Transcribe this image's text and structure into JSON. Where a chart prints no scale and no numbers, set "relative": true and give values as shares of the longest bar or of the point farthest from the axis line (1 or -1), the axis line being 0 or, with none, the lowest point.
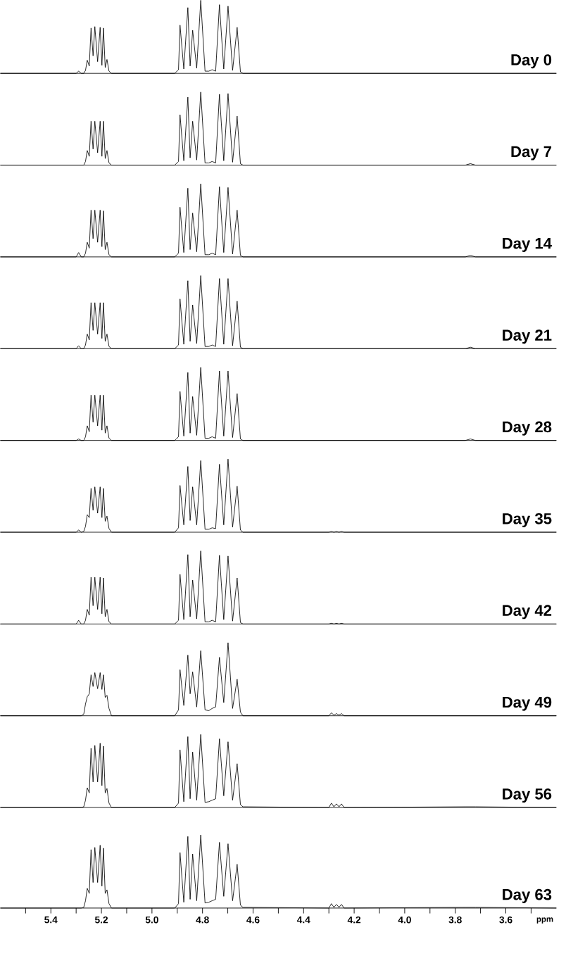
{
  "chart_data": [
    {
      "type": "line",
      "relative": true,
      "xlim": [
        5.6,
        3.4
      ],
      "tick_labels": false,
      "x": [
        5.6,
        5.3,
        5.29,
        5.28,
        5.27,
        5.263,
        5.256,
        5.248,
        5.241,
        5.233,
        5.226,
        5.215,
        5.205,
        5.198,
        5.192,
        5.185,
        5.178,
        5.17,
        5.16,
        4.91,
        4.895,
        4.889,
        4.874,
        4.858,
        4.849,
        4.839,
        4.823,
        4.807,
        4.79,
        4.775,
        4.762,
        4.748,
        4.733,
        4.716,
        4.699,
        4.681,
        4.663,
        4.65,
        4.64,
        4.3,
        4.29,
        4.28,
        4.27,
        4.26,
        4.25,
        4.24,
        3.76,
        3.74,
        3.72,
        3.4
      ],
      "series": [
        {
          "name": "Day 0",
          "color": "#000000",
          "values": [
            0,
            0,
            0.03,
            0,
            0,
            0.04,
            0.18,
            0.1,
            0.62,
            0.24,
            0.64,
            0.16,
            0.63,
            0.11,
            0.62,
            0.08,
            0.19,
            0.03,
            0,
            0,
            0.05,
            0.66,
            0.06,
            0.9,
            0.1,
            0.59,
            0.07,
            1,
            0.03,
            0.03,
            0.05,
            0.03,
            0.94,
            0.06,
            0.92,
            0.04,
            0.63,
            0.02,
            0,
            0,
            0,
            0,
            0,
            0,
            0,
            0,
            0,
            0,
            0,
            0
          ]
        }
      ]
    },
    {
      "type": "line",
      "relative": true,
      "xlim": [
        5.6,
        3.4
      ],
      "tick_labels": false,
      "x": [
        5.6,
        5.3,
        5.29,
        5.28,
        5.27,
        5.263,
        5.256,
        5.248,
        5.241,
        5.233,
        5.226,
        5.215,
        5.205,
        5.198,
        5.192,
        5.185,
        5.178,
        5.17,
        5.16,
        4.91,
        4.895,
        4.889,
        4.874,
        4.858,
        4.849,
        4.839,
        4.823,
        4.807,
        4.79,
        4.775,
        4.762,
        4.748,
        4.733,
        4.716,
        4.699,
        4.681,
        4.663,
        4.65,
        4.64,
        4.3,
        4.29,
        4.28,
        4.27,
        4.26,
        4.25,
        4.24,
        3.76,
        3.74,
        3.72,
        3.4
      ],
      "series": [
        {
          "name": "Day 7",
          "color": "#000000",
          "values": [
            0,
            0,
            0,
            0,
            0,
            0.05,
            0.2,
            0.12,
            0.6,
            0.22,
            0.6,
            0.17,
            0.6,
            0.12,
            0.6,
            0.09,
            0.2,
            0.03,
            0,
            0,
            0.05,
            0.69,
            0.06,
            0.93,
            0.1,
            0.6,
            0.07,
            1,
            0.03,
            0.03,
            0.05,
            0.03,
            0.97,
            0.06,
            0.98,
            0.04,
            0.67,
            0.02,
            0,
            0,
            0,
            0,
            0,
            0,
            0,
            0,
            0,
            0.02,
            0,
            0
          ]
        }
      ]
    },
    {
      "type": "line",
      "relative": true,
      "xlim": [
        5.6,
        3.4
      ],
      "tick_labels": false,
      "x": [
        5.6,
        5.3,
        5.29,
        5.28,
        5.27,
        5.263,
        5.256,
        5.248,
        5.241,
        5.233,
        5.226,
        5.215,
        5.205,
        5.198,
        5.192,
        5.185,
        5.178,
        5.17,
        5.16,
        4.91,
        4.895,
        4.889,
        4.874,
        4.858,
        4.849,
        4.839,
        4.823,
        4.807,
        4.79,
        4.775,
        4.762,
        4.748,
        4.733,
        4.716,
        4.699,
        4.681,
        4.663,
        4.65,
        4.64,
        4.3,
        4.29,
        4.28,
        4.27,
        4.26,
        4.25,
        4.24,
        3.76,
        3.74,
        3.72,
        3.4
      ],
      "series": [
        {
          "name": "Day 14",
          "color": "#000000",
          "values": [
            0,
            0,
            0.06,
            0,
            0,
            0.05,
            0.2,
            0.12,
            0.64,
            0.25,
            0.64,
            0.2,
            0.64,
            0.14,
            0.63,
            0.1,
            0.2,
            0.03,
            0,
            0,
            0.05,
            0.68,
            0.06,
            0.94,
            0.1,
            0.6,
            0.07,
            1,
            0.03,
            0.03,
            0.05,
            0.03,
            0.96,
            0.06,
            0.95,
            0.04,
            0.64,
            0.02,
            0,
            0,
            0,
            0,
            0,
            0,
            0,
            0,
            0,
            0.02,
            0,
            0
          ]
        }
      ]
    },
    {
      "type": "line",
      "relative": true,
      "xlim": [
        5.6,
        3.4
      ],
      "tick_labels": false,
      "x": [
        5.6,
        5.3,
        5.29,
        5.28,
        5.27,
        5.263,
        5.256,
        5.248,
        5.241,
        5.233,
        5.226,
        5.215,
        5.205,
        5.198,
        5.192,
        5.185,
        5.178,
        5.17,
        5.16,
        4.91,
        4.895,
        4.889,
        4.874,
        4.858,
        4.849,
        4.839,
        4.823,
        4.807,
        4.79,
        4.775,
        4.762,
        4.748,
        4.733,
        4.716,
        4.699,
        4.681,
        4.663,
        4.65,
        4.64,
        4.3,
        4.29,
        4.28,
        4.27,
        4.26,
        4.25,
        4.24,
        3.76,
        3.74,
        3.72,
        3.4
      ],
      "series": [
        {
          "name": "Day 21",
          "color": "#000000",
          "values": [
            0,
            0,
            0.04,
            0,
            0,
            0.05,
            0.2,
            0.12,
            0.63,
            0.25,
            0.63,
            0.2,
            0.63,
            0.14,
            0.63,
            0.1,
            0.2,
            0.03,
            0,
            0,
            0.05,
            0.68,
            0.06,
            0.93,
            0.1,
            0.6,
            0.07,
            1,
            0.03,
            0.03,
            0.05,
            0.03,
            0.96,
            0.06,
            0.96,
            0.04,
            0.65,
            0.02,
            0,
            0,
            0,
            0,
            0,
            0,
            0,
            0,
            0,
            0.02,
            0,
            0
          ]
        }
      ]
    },
    {
      "type": "line",
      "relative": true,
      "xlim": [
        5.6,
        3.4
      ],
      "tick_labels": false,
      "x": [
        5.6,
        5.3,
        5.29,
        5.28,
        5.27,
        5.263,
        5.256,
        5.248,
        5.241,
        5.233,
        5.226,
        5.215,
        5.205,
        5.198,
        5.192,
        5.185,
        5.178,
        5.17,
        5.16,
        4.91,
        4.895,
        4.889,
        4.874,
        4.858,
        4.849,
        4.839,
        4.823,
        4.807,
        4.79,
        4.775,
        4.762,
        4.748,
        4.733,
        4.716,
        4.699,
        4.681,
        4.663,
        4.65,
        4.64,
        4.3,
        4.29,
        4.28,
        4.27,
        4.26,
        4.25,
        4.24,
        3.76,
        3.74,
        3.72,
        3.4
      ],
      "series": [
        {
          "name": "Day 28",
          "color": "#000000",
          "values": [
            0,
            0,
            0.02,
            0,
            0,
            0.05,
            0.2,
            0.12,
            0.62,
            0.25,
            0.62,
            0.2,
            0.62,
            0.14,
            0.62,
            0.1,
            0.2,
            0.03,
            0,
            0,
            0.05,
            0.67,
            0.06,
            0.93,
            0.1,
            0.6,
            0.07,
            1,
            0.03,
            0.03,
            0.05,
            0.03,
            0.95,
            0.06,
            0.95,
            0.04,
            0.64,
            0.02,
            0,
            0,
            0,
            0,
            0,
            0,
            0,
            0,
            0,
            0.02,
            0,
            0
          ]
        }
      ]
    },
    {
      "type": "line",
      "relative": true,
      "xlim": [
        5.6,
        3.4
      ],
      "tick_labels": false,
      "x": [
        5.6,
        5.3,
        5.29,
        5.28,
        5.27,
        5.263,
        5.256,
        5.248,
        5.241,
        5.233,
        5.226,
        5.215,
        5.205,
        5.198,
        5.192,
        5.185,
        5.178,
        5.17,
        5.16,
        4.91,
        4.895,
        4.889,
        4.874,
        4.858,
        4.849,
        4.839,
        4.823,
        4.807,
        4.79,
        4.775,
        4.762,
        4.748,
        4.733,
        4.716,
        4.699,
        4.681,
        4.663,
        4.65,
        4.64,
        4.3,
        4.29,
        4.28,
        4.27,
        4.26,
        4.25,
        4.24,
        3.76,
        3.74,
        3.72,
        3.4
      ],
      "series": [
        {
          "name": "Day 35",
          "color": "#000000",
          "values": [
            0,
            0,
            0.03,
            0,
            0.01,
            0.08,
            0.24,
            0.2,
            0.6,
            0.3,
            0.62,
            0.26,
            0.62,
            0.2,
            0.6,
            0.15,
            0.22,
            0.05,
            0,
            0,
            0.06,
            0.64,
            0.1,
            0.9,
            0.16,
            0.62,
            0.1,
            0.98,
            0.04,
            0.04,
            0.06,
            0.05,
            0.93,
            0.1,
            1,
            0.07,
            0.63,
            0.03,
            0,
            0,
            0.01,
            0,
            0.01,
            0,
            0.01,
            0,
            0,
            0,
            0,
            0
          ]
        }
      ]
    },
    {
      "type": "line",
      "relative": true,
      "xlim": [
        5.6,
        3.4
      ],
      "tick_labels": false,
      "x": [
        5.6,
        5.3,
        5.29,
        5.28,
        5.27,
        5.263,
        5.256,
        5.248,
        5.241,
        5.233,
        5.226,
        5.215,
        5.205,
        5.198,
        5.192,
        5.185,
        5.178,
        5.17,
        5.16,
        4.91,
        4.895,
        4.889,
        4.874,
        4.858,
        4.849,
        4.839,
        4.823,
        4.807,
        4.79,
        4.775,
        4.762,
        4.748,
        4.733,
        4.716,
        4.699,
        4.681,
        4.663,
        4.65,
        4.64,
        4.3,
        4.29,
        4.28,
        4.27,
        4.26,
        4.25,
        4.24,
        3.76,
        3.74,
        3.72,
        3.4
      ],
      "series": [
        {
          "name": "Day 42",
          "color": "#000000",
          "values": [
            0,
            0,
            0.05,
            0,
            0,
            0.05,
            0.2,
            0.12,
            0.64,
            0.25,
            0.64,
            0.2,
            0.64,
            0.14,
            0.63,
            0.1,
            0.2,
            0.03,
            0,
            0,
            0.05,
            0.68,
            0.06,
            0.95,
            0.1,
            0.6,
            0.07,
            1,
            0.03,
            0.03,
            0.05,
            0.03,
            0.94,
            0.06,
            0.93,
            0.04,
            0.63,
            0.02,
            0,
            0,
            0.01,
            0,
            0.01,
            0,
            0.01,
            0,
            0,
            0,
            0,
            0
          ]
        }
      ]
    },
    {
      "type": "line",
      "relative": true,
      "xlim": [
        5.6,
        3.4
      ],
      "tick_labels": false,
      "x": [
        5.6,
        5.3,
        5.29,
        5.28,
        5.27,
        5.263,
        5.256,
        5.248,
        5.241,
        5.233,
        5.226,
        5.215,
        5.205,
        5.198,
        5.192,
        5.185,
        5.178,
        5.17,
        5.16,
        4.91,
        4.895,
        4.889,
        4.874,
        4.858,
        4.849,
        4.839,
        4.823,
        4.807,
        4.79,
        4.775,
        4.762,
        4.748,
        4.733,
        4.716,
        4.699,
        4.681,
        4.663,
        4.65,
        4.64,
        4.3,
        4.29,
        4.28,
        4.27,
        4.26,
        4.25,
        4.24,
        3.76,
        3.74,
        3.72,
        3.4
      ],
      "series": [
        {
          "name": "Day 49",
          "color": "#000000",
          "values": [
            0,
            0,
            0,
            0,
            0.02,
            0.16,
            0.26,
            0.3,
            0.56,
            0.4,
            0.59,
            0.37,
            0.59,
            0.36,
            0.56,
            0.25,
            0.28,
            0.1,
            0,
            0,
            0.08,
            0.63,
            0.14,
            0.83,
            0.3,
            0.6,
            0.12,
            0.89,
            0.08,
            0.07,
            0.1,
            0.12,
            0.8,
            0.18,
            1,
            0.1,
            0.5,
            0.05,
            0,
            0,
            0.04,
            0.01,
            0.03,
            0.01,
            0.03,
            0,
            0,
            0,
            0,
            0
          ]
        }
      ]
    },
    {
      "type": "line",
      "relative": true,
      "xlim": [
        5.6,
        3.4
      ],
      "tick_labels": false,
      "x": [
        5.6,
        5.3,
        5.29,
        5.28,
        5.27,
        5.263,
        5.256,
        5.248,
        5.241,
        5.233,
        5.226,
        5.215,
        5.205,
        5.198,
        5.192,
        5.185,
        5.178,
        5.17,
        5.16,
        4.91,
        4.895,
        4.889,
        4.874,
        4.858,
        4.849,
        4.839,
        4.823,
        4.807,
        4.79,
        4.775,
        4.762,
        4.748,
        4.733,
        4.716,
        4.699,
        4.681,
        4.663,
        4.65,
        4.64,
        4.3,
        4.29,
        4.28,
        4.27,
        4.26,
        4.25,
        4.24,
        3.76,
        3.74,
        3.72,
        3.4
      ],
      "series": [
        {
          "name": "Day 56",
          "color": "#000000",
          "values": [
            0,
            0,
            0,
            0,
            0.01,
            0.1,
            0.27,
            0.2,
            0.81,
            0.35,
            0.85,
            0.35,
            0.88,
            0.3,
            0.84,
            0.2,
            0.26,
            0.06,
            0,
            0,
            0.06,
            0.79,
            0.08,
            0.97,
            0.12,
            0.76,
            0.1,
            1,
            0.07,
            0.08,
            0.1,
            0.12,
            0.94,
            0.16,
            0.9,
            0.1,
            0.6,
            0.04,
            0.01,
            0,
            0.06,
            0.01,
            0.05,
            0.01,
            0.05,
            0,
            0.01,
            0.01,
            0.01,
            0
          ]
        }
      ]
    },
    {
      "type": "line",
      "relative": true,
      "xlim": [
        5.6,
        3.4
      ],
      "tick_labels": "x",
      "xlabel": "ppm",
      "x": [
        5.6,
        5.3,
        5.29,
        5.28,
        5.27,
        5.263,
        5.256,
        5.248,
        5.241,
        5.233,
        5.226,
        5.215,
        5.205,
        5.198,
        5.192,
        5.185,
        5.178,
        5.17,
        5.16,
        4.91,
        4.895,
        4.889,
        4.874,
        4.858,
        4.849,
        4.839,
        4.823,
        4.807,
        4.79,
        4.775,
        4.762,
        4.748,
        4.733,
        4.716,
        4.699,
        4.681,
        4.663,
        4.65,
        4.64,
        4.3,
        4.29,
        4.28,
        4.27,
        4.26,
        4.25,
        4.24,
        3.76,
        3.74,
        3.72,
        3.4
      ],
      "xticks": [
        {
          "value": 5.5,
          "label": null
        },
        5.4,
        {
          "value": 5.3,
          "label": null
        },
        5.2,
        {
          "value": 5.1,
          "label": null
        },
        {
          "value": 5.0,
          "label": "5.0"
        },
        {
          "value": 4.9,
          "label": null
        },
        4.8,
        {
          "value": 4.7,
          "label": null
        },
        4.6,
        {
          "value": 4.5,
          "label": null
        },
        4.4,
        {
          "value": 4.3,
          "label": null
        },
        4.2,
        {
          "value": 4.1,
          "label": null
        },
        {
          "value": 4.0,
          "label": "4.0"
        },
        {
          "value": 3.9,
          "label": null
        },
        3.8,
        {
          "value": 3.7,
          "label": null
        },
        3.6,
        {
          "value": 3.5,
          "label": null
        }
      ],
      "series": [
        {
          "name": "Day 63",
          "color": "#000000",
          "values": [
            0,
            0,
            0,
            0,
            0.01,
            0.1,
            0.27,
            0.2,
            0.8,
            0.35,
            0.83,
            0.35,
            0.86,
            0.3,
            0.82,
            0.2,
            0.25,
            0.06,
            0,
            0,
            0.06,
            0.76,
            0.08,
            0.98,
            0.12,
            0.74,
            0.1,
            1,
            0.07,
            0.08,
            0.1,
            0.12,
            0.9,
            0.16,
            0.88,
            0.1,
            0.6,
            0.04,
            0.01,
            0,
            0.06,
            0.01,
            0.05,
            0.01,
            0.05,
            0,
            0.01,
            0.01,
            0.01,
            0
          ]
        }
      ]
    }
  ]
}
